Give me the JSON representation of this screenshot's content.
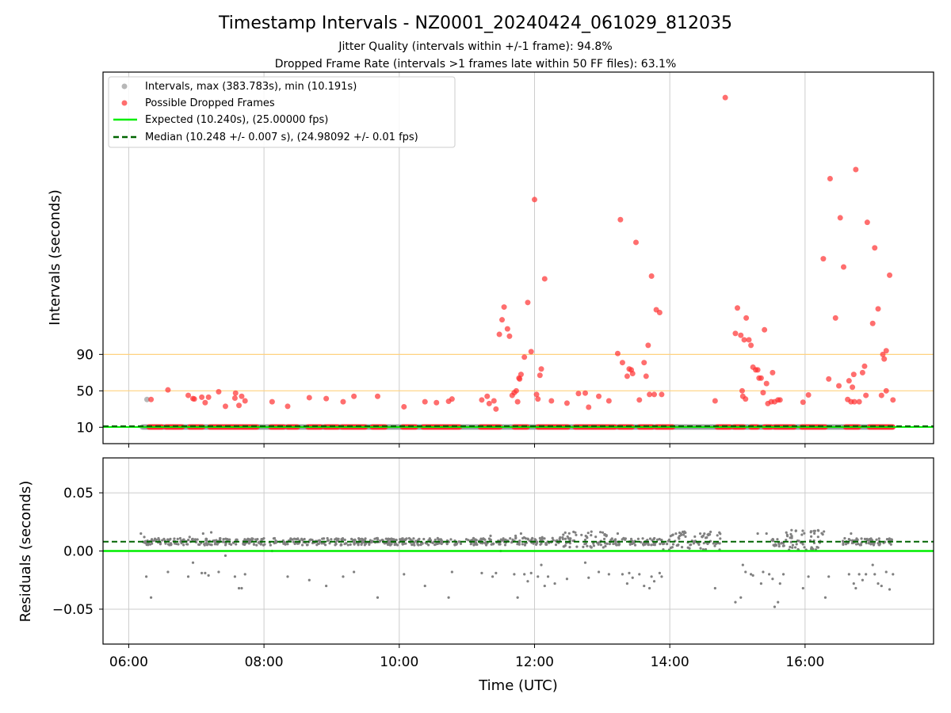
{
  "title": "Timestamp Intervals - NZ0001_20240424_061029_812035",
  "subtitle_line1": "Jitter Quality (intervals within +/-1 frame): 94.8%",
  "subtitle_line2": "Dropped Frame Rate (intervals >1 frames late within 50 FF files): 63.1%",
  "colors": {
    "intervals": "#999999",
    "dropped": "#ff3030",
    "expected": "#00ee00",
    "median": "#006400",
    "threshold": "#ffd27f",
    "grid": "#cccccc",
    "residual": "#808080"
  },
  "chart_data": [
    {
      "type": "scatter",
      "panel": "top",
      "ylabel": "Intervals (seconds)",
      "yticks": [
        10,
        50,
        90
      ],
      "ytick_labels": [
        "10",
        "50",
        "90"
      ],
      "ylim": [
        -8,
        400
      ],
      "xlim_hours": [
        5.62,
        17.9
      ],
      "xticks_hours": [
        6,
        8,
        10,
        12,
        14,
        16
      ],
      "grid": true,
      "legend_position": "top-left",
      "legend": [
        {
          "label": "Intervals, max (383.783s), min (10.191s)",
          "kind": "grey-dot"
        },
        {
          "label": "Possible Dropped Frames",
          "kind": "red-dot"
        },
        {
          "label": "Expected (10.240s), (25.00000 fps)",
          "kind": "solid-green"
        },
        {
          "label": "Median (10.248 +/- 0.007 s), (24.98092 +/- 0.01 fps)",
          "kind": "dashed-darkgreen"
        }
      ],
      "threshold_lines": [
        50,
        90
      ],
      "expected_value": 10.24,
      "median_value": 10.248,
      "baseline_interval_spans": [
        [
          6.2,
          17.3
        ]
      ],
      "dropped_baseline_spans": [
        [
          6.3,
          6.5
        ],
        [
          6.55,
          6.8
        ],
        [
          6.9,
          7.1
        ],
        [
          7.2,
          7.5
        ],
        [
          7.5,
          7.9
        ],
        [
          8.1,
          8.3
        ],
        [
          8.35,
          8.5
        ],
        [
          8.65,
          8.85
        ],
        [
          8.9,
          9.1
        ],
        [
          9.15,
          9.5
        ],
        [
          9.6,
          9.8
        ],
        [
          10.05,
          10.25
        ],
        [
          10.35,
          10.9
        ],
        [
          11.2,
          11.5
        ],
        [
          11.7,
          11.9
        ],
        [
          12.05,
          12.5
        ],
        [
          12.6,
          13.2
        ],
        [
          13.25,
          13.45
        ],
        [
          13.55,
          13.75
        ],
        [
          13.8,
          14.05
        ],
        [
          14.7,
          14.9
        ],
        [
          14.95,
          15.1
        ],
        [
          15.2,
          15.3
        ],
        [
          15.4,
          15.5
        ],
        [
          15.55,
          15.85
        ],
        [
          15.95,
          16.3
        ],
        [
          16.6,
          16.8
        ],
        [
          16.95,
          17.3
        ]
      ],
      "intervals": [
        {
          "x": 6.27,
          "y": 40.5
        }
      ],
      "dropped_frames": [
        {
          "x": 6.33,
          "y": 40.5
        },
        {
          "x": 6.58,
          "y": 51
        },
        {
          "x": 6.88,
          "y": 45
        },
        {
          "x": 6.95,
          "y": 41.5
        },
        {
          "x": 6.97,
          "y": 41
        },
        {
          "x": 7.08,
          "y": 43
        },
        {
          "x": 7.13,
          "y": 37
        },
        {
          "x": 7.18,
          "y": 43
        },
        {
          "x": 7.33,
          "y": 49
        },
        {
          "x": 7.43,
          "y": 33
        },
        {
          "x": 7.57,
          "y": 42
        },
        {
          "x": 7.58,
          "y": 47.5
        },
        {
          "x": 7.63,
          "y": 34
        },
        {
          "x": 7.67,
          "y": 44
        },
        {
          "x": 7.72,
          "y": 39
        },
        {
          "x": 8.12,
          "y": 38
        },
        {
          "x": 8.35,
          "y": 33
        },
        {
          "x": 8.67,
          "y": 42.5
        },
        {
          "x": 8.92,
          "y": 41.5
        },
        {
          "x": 9.17,
          "y": 38
        },
        {
          "x": 9.33,
          "y": 44
        },
        {
          "x": 9.68,
          "y": 44
        },
        {
          "x": 10.07,
          "y": 32.5
        },
        {
          "x": 10.38,
          "y": 38
        },
        {
          "x": 10.55,
          "y": 37
        },
        {
          "x": 10.73,
          "y": 38.5
        },
        {
          "x": 10.78,
          "y": 41
        },
        {
          "x": 11.22,
          "y": 40
        },
        {
          "x": 11.3,
          "y": 44
        },
        {
          "x": 11.33,
          "y": 36
        },
        {
          "x": 11.4,
          "y": 39
        },
        {
          "x": 11.43,
          "y": 30
        },
        {
          "x": 11.48,
          "y": 112
        },
        {
          "x": 11.52,
          "y": 128
        },
        {
          "x": 11.55,
          "y": 142
        },
        {
          "x": 11.6,
          "y": 118
        },
        {
          "x": 11.63,
          "y": 110
        },
        {
          "x": 11.67,
          "y": 45
        },
        {
          "x": 11.7,
          "y": 48
        },
        {
          "x": 11.73,
          "y": 50
        },
        {
          "x": 11.75,
          "y": 38
        },
        {
          "x": 11.77,
          "y": 64
        },
        {
          "x": 11.78,
          "y": 63
        },
        {
          "x": 11.8,
          "y": 68
        },
        {
          "x": 11.85,
          "y": 87
        },
        {
          "x": 11.9,
          "y": 147
        },
        {
          "x": 11.95,
          "y": 93
        },
        {
          "x": 12.0,
          "y": 260
        },
        {
          "x": 12.03,
          "y": 46
        },
        {
          "x": 12.05,
          "y": 41
        },
        {
          "x": 12.08,
          "y": 67
        },
        {
          "x": 12.1,
          "y": 74
        },
        {
          "x": 12.15,
          "y": 173
        },
        {
          "x": 12.25,
          "y": 39
        },
        {
          "x": 12.48,
          "y": 36.5
        },
        {
          "x": 12.65,
          "y": 47
        },
        {
          "x": 12.75,
          "y": 47.5
        },
        {
          "x": 12.8,
          "y": 32
        },
        {
          "x": 12.95,
          "y": 44
        },
        {
          "x": 13.1,
          "y": 39
        },
        {
          "x": 13.23,
          "y": 91
        },
        {
          "x": 13.27,
          "y": 238
        },
        {
          "x": 13.3,
          "y": 81
        },
        {
          "x": 13.37,
          "y": 66
        },
        {
          "x": 13.4,
          "y": 74
        },
        {
          "x": 13.43,
          "y": 73
        },
        {
          "x": 13.45,
          "y": 69
        },
        {
          "x": 13.5,
          "y": 213
        },
        {
          "x": 13.55,
          "y": 40
        },
        {
          "x": 13.62,
          "y": 81
        },
        {
          "x": 13.65,
          "y": 66
        },
        {
          "x": 13.68,
          "y": 100
        },
        {
          "x": 13.7,
          "y": 46
        },
        {
          "x": 13.73,
          "y": 176
        },
        {
          "x": 13.77,
          "y": 46
        },
        {
          "x": 13.8,
          "y": 139
        },
        {
          "x": 13.85,
          "y": 136
        },
        {
          "x": 13.88,
          "y": 46
        },
        {
          "x": 14.67,
          "y": 39
        },
        {
          "x": 14.82,
          "y": 372
        },
        {
          "x": 14.97,
          "y": 113
        },
        {
          "x": 15.0,
          "y": 141
        },
        {
          "x": 15.05,
          "y": 111
        },
        {
          "x": 15.07,
          "y": 50
        },
        {
          "x": 15.08,
          "y": 44
        },
        {
          "x": 15.1,
          "y": 106
        },
        {
          "x": 15.12,
          "y": 41
        },
        {
          "x": 15.13,
          "y": 130
        },
        {
          "x": 15.17,
          "y": 106
        },
        {
          "x": 15.2,
          "y": 100
        },
        {
          "x": 15.23,
          "y": 76
        },
        {
          "x": 15.27,
          "y": 73
        },
        {
          "x": 15.3,
          "y": 73
        },
        {
          "x": 15.32,
          "y": 64
        },
        {
          "x": 15.35,
          "y": 64
        },
        {
          "x": 15.38,
          "y": 48
        },
        {
          "x": 15.4,
          "y": 117
        },
        {
          "x": 15.43,
          "y": 58
        },
        {
          "x": 15.45,
          "y": 36
        },
        {
          "x": 15.5,
          "y": 38
        },
        {
          "x": 15.52,
          "y": 70
        },
        {
          "x": 15.55,
          "y": 38
        },
        {
          "x": 15.6,
          "y": 40
        },
        {
          "x": 15.63,
          "y": 40
        },
        {
          "x": 15.97,
          "y": 37.5
        },
        {
          "x": 16.05,
          "y": 45.5
        },
        {
          "x": 16.27,
          "y": 195
        },
        {
          "x": 16.35,
          "y": 63
        },
        {
          "x": 16.37,
          "y": 283
        },
        {
          "x": 16.45,
          "y": 130
        },
        {
          "x": 16.5,
          "y": 55.5
        },
        {
          "x": 16.52,
          "y": 240
        },
        {
          "x": 16.57,
          "y": 186
        },
        {
          "x": 16.63,
          "y": 40.5
        },
        {
          "x": 16.65,
          "y": 61
        },
        {
          "x": 16.68,
          "y": 38
        },
        {
          "x": 16.7,
          "y": 54
        },
        {
          "x": 16.72,
          "y": 68
        },
        {
          "x": 16.73,
          "y": 38
        },
        {
          "x": 16.75,
          "y": 293
        },
        {
          "x": 16.8,
          "y": 38
        },
        {
          "x": 16.85,
          "y": 70
        },
        {
          "x": 16.88,
          "y": 77
        },
        {
          "x": 16.9,
          "y": 45
        },
        {
          "x": 16.92,
          "y": 235
        },
        {
          "x": 17.0,
          "y": 124
        },
        {
          "x": 17.03,
          "y": 207
        },
        {
          "x": 17.08,
          "y": 140
        },
        {
          "x": 17.13,
          "y": 45
        },
        {
          "x": 17.15,
          "y": 90
        },
        {
          "x": 17.17,
          "y": 85
        },
        {
          "x": 17.2,
          "y": 50
        },
        {
          "x": 17.2,
          "y": 94
        },
        {
          "x": 17.25,
          "y": 177
        },
        {
          "x": 17.3,
          "y": 40
        }
      ]
    },
    {
      "type": "scatter",
      "panel": "bottom",
      "xlabel": "Time (UTC)",
      "ylabel": "Residuals (seconds)",
      "yticks": [
        -0.05,
        0.0,
        0.05
      ],
      "ytick_labels": [
        "−0.05",
        "0.00",
        "0.05"
      ],
      "ylim": [
        -0.08,
        0.08
      ],
      "xlim_hours": [
        5.62,
        17.9
      ],
      "xticks_hours": [
        6,
        8,
        10,
        12,
        14,
        16
      ],
      "xtick_labels": [
        "06:00",
        "08:00",
        "10:00",
        "12:00",
        "14:00",
        "16:00"
      ],
      "grid": true,
      "expected_residual": 0.0,
      "median_residual": 0.008,
      "dense_bands": [
        {
          "x_range": [
            6.2,
            11.7
          ],
          "y_range": [
            0.005,
            0.011
          ]
        },
        {
          "x_range": [
            11.7,
            12.4
          ],
          "y_range": [
            0.005,
            0.012
          ]
        },
        {
          "x_range": [
            12.4,
            13.1
          ],
          "y_range": [
            0.003,
            0.017
          ]
        },
        {
          "x_range": [
            13.1,
            13.9
          ],
          "y_range": [
            0.005,
            0.011
          ]
        },
        {
          "x_range": [
            13.9,
            14.75
          ],
          "y_range": [
            0.001,
            0.018
          ]
        },
        {
          "x_range": [
            15.5,
            15.7
          ],
          "y_range": [
            0.004,
            0.011
          ]
        },
        {
          "x_range": [
            15.7,
            16.3
          ],
          "y_range": [
            0.001,
            0.018
          ]
        },
        {
          "x_range": [
            16.55,
            17.3
          ],
          "y_range": [
            0.005,
            0.011
          ]
        }
      ],
      "outliers": [
        {
          "x": 6.18,
          "y": 0.015
        },
        {
          "x": 6.23,
          "y": 0.012
        },
        {
          "x": 6.26,
          "y": -0.022
        },
        {
          "x": 6.33,
          "y": -0.04
        },
        {
          "x": 6.58,
          "y": -0.018
        },
        {
          "x": 6.88,
          "y": -0.022
        },
        {
          "x": 6.9,
          "y": 0.012
        },
        {
          "x": 6.95,
          "y": -0.01
        },
        {
          "x": 7.08,
          "y": -0.019
        },
        {
          "x": 7.13,
          "y": -0.019
        },
        {
          "x": 7.18,
          "y": -0.021
        },
        {
          "x": 7.1,
          "y": 0.015
        },
        {
          "x": 7.22,
          "y": 0.016
        },
        {
          "x": 7.33,
          "y": -0.018
        },
        {
          "x": 7.43,
          "y": -0.004
        },
        {
          "x": 7.57,
          "y": -0.022
        },
        {
          "x": 7.63,
          "y": -0.032
        },
        {
          "x": 7.67,
          "y": -0.032
        },
        {
          "x": 7.72,
          "y": -0.02
        },
        {
          "x": 8.12,
          "y": 0.0
        },
        {
          "x": 8.35,
          "y": -0.022
        },
        {
          "x": 8.67,
          "y": -0.025
        },
        {
          "x": 8.92,
          "y": -0.03
        },
        {
          "x": 9.17,
          "y": -0.022
        },
        {
          "x": 9.33,
          "y": -0.018
        },
        {
          "x": 9.68,
          "y": -0.04
        },
        {
          "x": 10.07,
          "y": -0.02
        },
        {
          "x": 10.38,
          "y": -0.03
        },
        {
          "x": 10.73,
          "y": -0.04
        },
        {
          "x": 10.78,
          "y": -0.018
        },
        {
          "x": 11.22,
          "y": -0.019
        },
        {
          "x": 11.35,
          "y": 0.013
        },
        {
          "x": 11.38,
          "y": -0.022
        },
        {
          "x": 11.43,
          "y": -0.019
        },
        {
          "x": 11.5,
          "y": 0.0
        },
        {
          "x": 11.7,
          "y": -0.02
        },
        {
          "x": 11.72,
          "y": 0.013
        },
        {
          "x": 11.75,
          "y": -0.04
        },
        {
          "x": 11.8,
          "y": 0.015
        },
        {
          "x": 11.85,
          "y": -0.02
        },
        {
          "x": 11.9,
          "y": -0.026
        },
        {
          "x": 11.95,
          "y": -0.019
        },
        {
          "x": 12.05,
          "y": -0.022
        },
        {
          "x": 12.1,
          "y": -0.012
        },
        {
          "x": 12.15,
          "y": -0.03
        },
        {
          "x": 12.2,
          "y": -0.022
        },
        {
          "x": 12.3,
          "y": -0.028
        },
        {
          "x": 12.48,
          "y": -0.024
        },
        {
          "x": 12.75,
          "y": -0.01
        },
        {
          "x": 12.8,
          "y": -0.023
        },
        {
          "x": 12.95,
          "y": -0.018
        },
        {
          "x": 13.1,
          "y": -0.02
        },
        {
          "x": 13.23,
          "y": 0.015
        },
        {
          "x": 13.3,
          "y": -0.02
        },
        {
          "x": 13.37,
          "y": -0.028
        },
        {
          "x": 13.4,
          "y": -0.019
        },
        {
          "x": 13.45,
          "y": -0.023
        },
        {
          "x": 13.55,
          "y": -0.02
        },
        {
          "x": 13.62,
          "y": -0.03
        },
        {
          "x": 13.7,
          "y": -0.032
        },
        {
          "x": 13.73,
          "y": -0.022
        },
        {
          "x": 13.77,
          "y": -0.026
        },
        {
          "x": 13.85,
          "y": -0.019
        },
        {
          "x": 13.88,
          "y": -0.022
        },
        {
          "x": 14.67,
          "y": -0.032
        },
        {
          "x": 14.97,
          "y": -0.044
        },
        {
          "x": 15.05,
          "y": -0.04
        },
        {
          "x": 15.08,
          "y": -0.012
        },
        {
          "x": 15.12,
          "y": -0.018
        },
        {
          "x": 15.2,
          "y": -0.02
        },
        {
          "x": 15.23,
          "y": -0.021
        },
        {
          "x": 15.3,
          "y": 0.015
        },
        {
          "x": 15.35,
          "y": -0.028
        },
        {
          "x": 15.38,
          "y": -0.018
        },
        {
          "x": 15.43,
          "y": 0.015
        },
        {
          "x": 15.47,
          "y": -0.02
        },
        {
          "x": 15.52,
          "y": -0.024
        },
        {
          "x": 15.55,
          "y": -0.048
        },
        {
          "x": 15.6,
          "y": -0.044
        },
        {
          "x": 15.63,
          "y": -0.028
        },
        {
          "x": 15.68,
          "y": -0.02
        },
        {
          "x": 15.97,
          "y": -0.032
        },
        {
          "x": 16.05,
          "y": -0.022
        },
        {
          "x": 16.3,
          "y": -0.04
        },
        {
          "x": 16.35,
          "y": -0.022
        },
        {
          "x": 16.65,
          "y": -0.02
        },
        {
          "x": 16.68,
          "y": 0.015
        },
        {
          "x": 16.72,
          "y": -0.028
        },
        {
          "x": 16.75,
          "y": -0.032
        },
        {
          "x": 16.8,
          "y": -0.02
        },
        {
          "x": 16.85,
          "y": -0.025
        },
        {
          "x": 16.9,
          "y": -0.02
        },
        {
          "x": 17.0,
          "y": -0.012
        },
        {
          "x": 17.03,
          "y": -0.02
        },
        {
          "x": 17.08,
          "y": -0.028
        },
        {
          "x": 17.13,
          "y": -0.03
        },
        {
          "x": 17.2,
          "y": -0.018
        },
        {
          "x": 17.25,
          "y": -0.033
        },
        {
          "x": 17.3,
          "y": -0.02
        }
      ]
    }
  ]
}
